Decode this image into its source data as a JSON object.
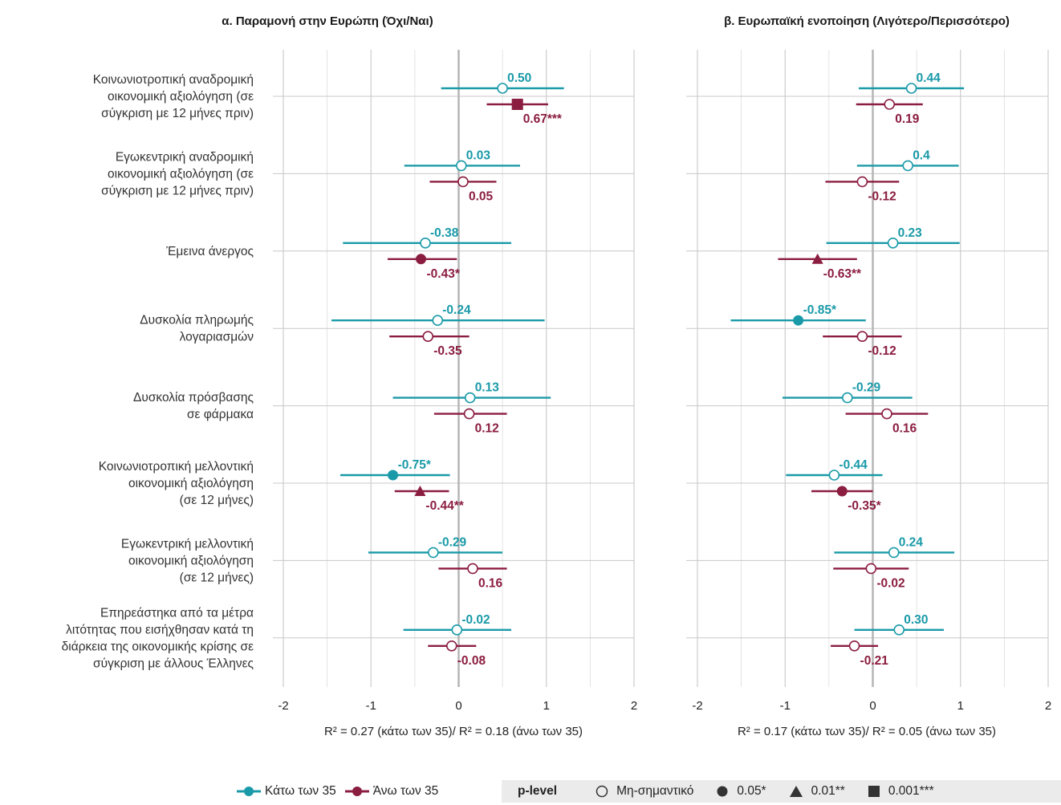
{
  "chart_data": [
    {
      "type": "scatter",
      "title": "α. Παραμονή στην Ευρώπη (Όχι/Ναι)",
      "xlabel": "R² = 0.27 (κάτω των 35)/ R² = 0.18 (άνω των 35)",
      "xlim": [
        -2,
        2
      ],
      "xticks": [
        "-2",
        "-1",
        "0",
        "1",
        "2"
      ],
      "series": [
        {
          "name": "Κάτω των 35",
          "color": "#1a9aa8",
          "values": [
            0.5,
            0.03,
            -0.38,
            -0.24,
            0.13,
            -0.75,
            -0.29,
            -0.02
          ],
          "ci_low": [
            -0.2,
            -0.62,
            -1.32,
            -1.45,
            -0.75,
            -1.35,
            -1.03,
            -0.63
          ],
          "ci_high": [
            1.2,
            0.7,
            0.6,
            0.98,
            1.05,
            -0.1,
            0.5,
            0.6
          ],
          "labels": [
            "0.50",
            "0.03",
            "-0.38",
            "-0.24",
            "0.13",
            "-0.75*",
            "-0.29",
            "-0.02"
          ],
          "p_level": [
            "ns",
            "ns",
            "ns",
            "ns",
            "ns",
            "0.05",
            "ns",
            "ns"
          ]
        },
        {
          "name": "Άνω των 35",
          "color": "#8b1d40",
          "values": [
            0.67,
            0.05,
            -0.43,
            -0.35,
            0.12,
            -0.44,
            0.16,
            -0.08
          ],
          "ci_low": [
            0.32,
            -0.33,
            -0.81,
            -0.79,
            -0.28,
            -0.73,
            -0.23,
            -0.35
          ],
          "ci_high": [
            1.02,
            0.43,
            -0.02,
            0.12,
            0.55,
            -0.11,
            0.55,
            0.2
          ],
          "labels": [
            "0.67***",
            "0.05",
            "-0.43*",
            "-0.35",
            "0.12",
            "-0.44**",
            "0.16",
            "-0.08"
          ],
          "p_level": [
            "0.001",
            "ns",
            "0.05",
            "ns",
            "ns",
            "0.01",
            "ns",
            "ns"
          ]
        }
      ]
    },
    {
      "type": "scatter",
      "title": "β. Ευρωπαϊκή ενοποίηση (Λιγότερο/Περισσότερο)",
      "xlabel": "R² = 0.17 (κάτω των 35)/ R² = 0.05 (άνω των 35)",
      "xlim": [
        -2,
        2
      ],
      "xticks": [
        "-2",
        "-1",
        "0",
        "1",
        "2"
      ],
      "series": [
        {
          "name": "Κάτω των 35",
          "color": "#1a9aa8",
          "values": [
            0.44,
            0.4,
            0.23,
            -0.85,
            -0.29,
            -0.44,
            0.24,
            0.3
          ],
          "ci_low": [
            -0.16,
            -0.18,
            -0.53,
            -1.62,
            -1.03,
            -0.99,
            -0.44,
            -0.21
          ],
          "ci_high": [
            1.04,
            0.98,
            0.99,
            -0.08,
            0.45,
            0.11,
            0.93,
            0.81
          ],
          "labels": [
            "0.44",
            "0.4",
            "0.23",
            "-0.85*",
            "-0.29",
            "-0.44",
            "0.24",
            "0.30"
          ],
          "p_level": [
            "ns",
            "ns",
            "ns",
            "0.05",
            "ns",
            "ns",
            "ns",
            "ns"
          ]
        },
        {
          "name": "Άνω των 35",
          "color": "#8b1d40",
          "values": [
            0.19,
            -0.12,
            -0.63,
            -0.12,
            0.16,
            -0.35,
            -0.02,
            -0.21
          ],
          "ci_low": [
            -0.19,
            -0.54,
            -1.08,
            -0.57,
            -0.31,
            -0.7,
            -0.45,
            -0.48
          ],
          "ci_high": [
            0.57,
            0.3,
            -0.18,
            0.33,
            0.63,
            0.0,
            0.41,
            0.06
          ],
          "labels": [
            "0.19",
            "-0.12",
            "-0.63**",
            "-0.12",
            "0.16",
            "-0.35*",
            "-0.02",
            "-0.21"
          ],
          "p_level": [
            "ns",
            "ns",
            "0.01",
            "ns",
            "ns",
            "0.05",
            "ns",
            "ns"
          ]
        }
      ]
    }
  ],
  "row_labels": [
    [
      "Κοινωνιοτροπική αναδρομική",
      "οικονομική αξιολόγηση (σε",
      "σύγκριση με 12 μήνες πριν)"
    ],
    [
      "Εγωκεντρική αναδρομική",
      "οικονομική αξιολόγηση (σε",
      "σύγκριση με 12 μήνες πριν)"
    ],
    [
      "Έμεινα άνεργος"
    ],
    [
      "Δυσκολία πληρωμής",
      "λογαριασμών"
    ],
    [
      "Δυσκολία πρόσβασης",
      "σε φάρμακα"
    ],
    [
      "Κοινωνιοτροπική μελλοντική",
      "οικονομική αξιολόγηση",
      "(σε 12 μήνες)"
    ],
    [
      "Εγωκεντρική μελλοντική",
      "οικονομική αξιολόγηση",
      "(σε 12 μήνες)"
    ],
    [
      "Επηρεάστηκα από τα μέτρα",
      "λιτότητας που εισήχθησαν κατά τη",
      "διάρκεια της οικονομικής κρίσης σε",
      "σύγκριση με άλλους Έλληνες"
    ]
  ],
  "legend": {
    "groups": [
      {
        "label": "Κάτω των 35",
        "color": "#1a9aa8"
      },
      {
        "label": "Άνω των 35",
        "color": "#8b1d40"
      }
    ],
    "p_title": "p-level",
    "p_items": [
      {
        "label": "Μη-σημαντικό",
        "shape": "open-circle-icon"
      },
      {
        "label": "0.05*",
        "shape": "filled-circle-icon"
      },
      {
        "label": "0.01**",
        "shape": "triangle-icon"
      },
      {
        "label": "0.001***",
        "shape": "square-icon"
      }
    ]
  }
}
